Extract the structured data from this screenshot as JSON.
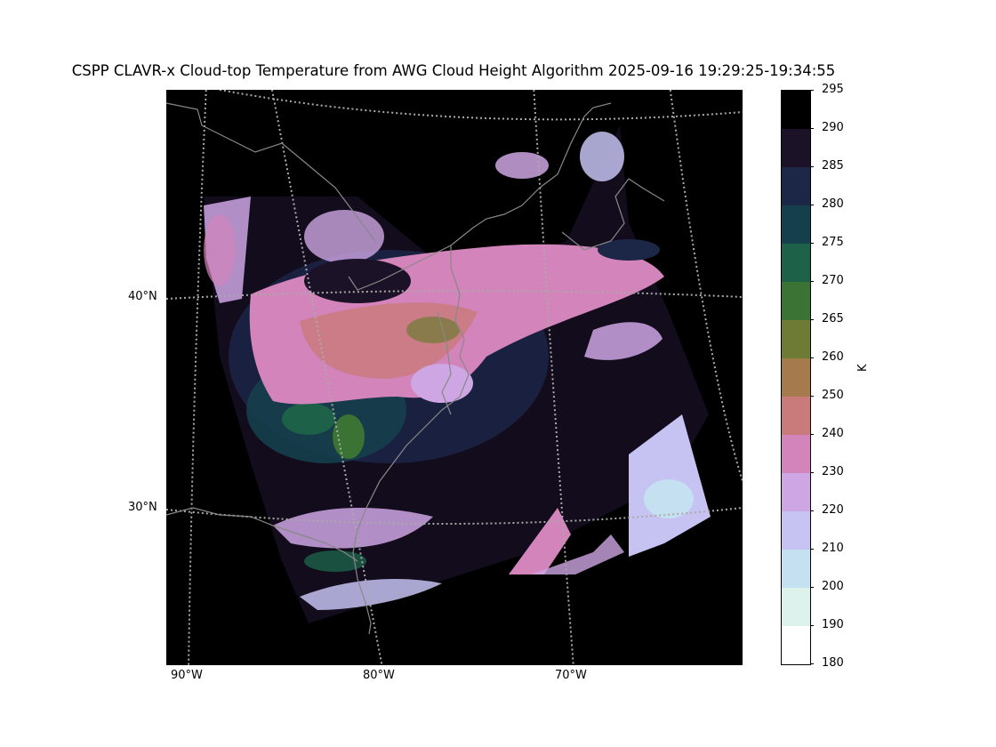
{
  "title": "CSPP CLAVR-x Cloud-top Temperature from AWG Cloud Height Algorithm 2025-09-16 19:29:25-19:34:55",
  "map": {
    "projection": "lambert-conformal",
    "background_color": "#000000",
    "coastline_color": "#888888",
    "graticule_color": "#aaaaaa",
    "latitude_labels": [
      {
        "key": "lat-40",
        "text": "40°N"
      },
      {
        "key": "lat-30",
        "text": "30°N"
      }
    ],
    "longitude_labels": [
      {
        "key": "lon-90",
        "text": "90°W"
      },
      {
        "key": "lon-80",
        "text": "80°W"
      },
      {
        "key": "lon-70",
        "text": "70°W"
      }
    ]
  },
  "colorbar": {
    "unit_label": "K",
    "ticks": [
      "295",
      "290",
      "285",
      "280",
      "275",
      "270",
      "265",
      "260",
      "250",
      "240",
      "230",
      "220",
      "210",
      "200",
      "190",
      "180"
    ],
    "color_bins": [
      {
        "range": "290-295",
        "color": "#000000"
      },
      {
        "range": "285-290",
        "color": "#1c1228"
      },
      {
        "range": "280-285",
        "color": "#1c2647"
      },
      {
        "range": "275-280",
        "color": "#163f4d"
      },
      {
        "range": "270-275",
        "color": "#1d6149"
      },
      {
        "range": "265-270",
        "color": "#3a7333"
      },
      {
        "range": "260-265",
        "color": "#6d7b34"
      },
      {
        "range": "250-260",
        "color": "#a57b4e"
      },
      {
        "range": "240-250",
        "color": "#c97b7b"
      },
      {
        "range": "230-240",
        "color": "#d284bb"
      },
      {
        "range": "220-230",
        "color": "#cea6e3"
      },
      {
        "range": "210-220",
        "color": "#c6c2f2"
      },
      {
        "range": "200-210",
        "color": "#c5e0f0"
      },
      {
        "range": "190-200",
        "color": "#ddf2ec"
      },
      {
        "range": "180-190",
        "color": "#ffffff"
      }
    ]
  }
}
